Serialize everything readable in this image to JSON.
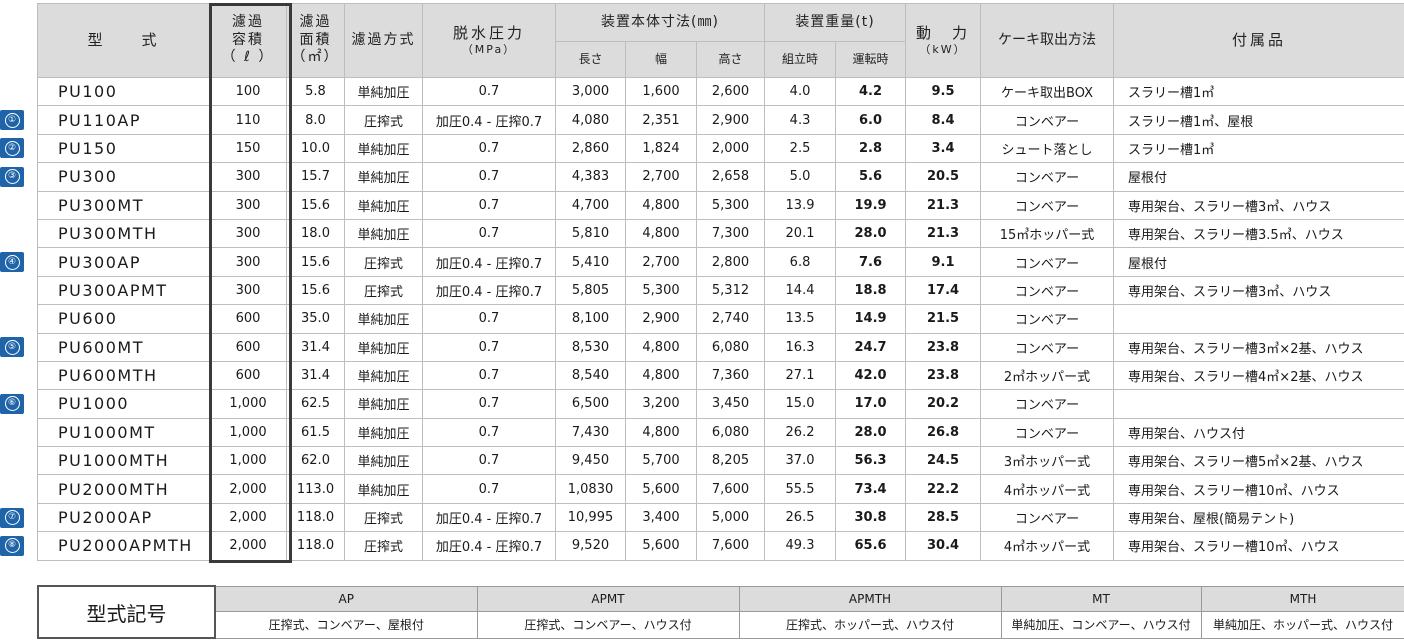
{
  "headers": {
    "model": "型　　式",
    "capacity": "濾過\n容積\n（ ℓ ）",
    "area": "濾過\n面積\n（㎡）",
    "method": "濾過方式",
    "pressure": "脱水圧力",
    "pressure_unit": "（MPa）",
    "dimensions": "装置本体寸法(㎜)",
    "length": "長さ",
    "width": "幅",
    "height": "高さ",
    "weight": "装置重量(t)",
    "weight_assembly": "組立時",
    "weight_operation": "運転時",
    "power": "動　力",
    "power_unit": "（kW）",
    "cake": "ケーキ取出方法",
    "accessories": "付属品"
  },
  "rows": [
    {
      "badge": "",
      "model": "PU100",
      "capacity": "100",
      "area": "5.8",
      "method": "単純加圧",
      "pressure": "0.7",
      "length": "3,000",
      "width": "1,600",
      "height": "2,600",
      "w_asm": "4.0",
      "w_op": "4.2",
      "power": "9.5",
      "cake": "ケーキ取出BOX",
      "acc": "スラリー槽1㎥"
    },
    {
      "badge": "①",
      "model": "PU110AP",
      "capacity": "110",
      "area": "8.0",
      "method": "圧搾式",
      "pressure": "加圧0.4 - 圧搾0.7",
      "length": "4,080",
      "width": "2,351",
      "height": "2,900",
      "w_asm": "4.3",
      "w_op": "6.0",
      "power": "8.4",
      "cake": "コンベアー",
      "acc": "スラリー槽1㎥、屋根"
    },
    {
      "badge": "②",
      "model": "PU150",
      "capacity": "150",
      "area": "10.0",
      "method": "単純加圧",
      "pressure": "0.7",
      "length": "2,860",
      "width": "1,824",
      "height": "2,000",
      "w_asm": "2.5",
      "w_op": "2.8",
      "power": "3.4",
      "cake": "シュート落とし",
      "acc": "スラリー槽1㎥"
    },
    {
      "badge": "③",
      "model": "PU300",
      "capacity": "300",
      "area": "15.7",
      "method": "単純加圧",
      "pressure": "0.7",
      "length": "4,383",
      "width": "2,700",
      "height": "2,658",
      "w_asm": "5.0",
      "w_op": "5.6",
      "power": "20.5",
      "cake": "コンベアー",
      "acc": "屋根付"
    },
    {
      "badge": "",
      "model": "PU300MT",
      "capacity": "300",
      "area": "15.6",
      "method": "単純加圧",
      "pressure": "0.7",
      "length": "4,700",
      "width": "4,800",
      "height": "5,300",
      "w_asm": "13.9",
      "w_op": "19.9",
      "power": "21.3",
      "cake": "コンベアー",
      "acc": "専用架台、スラリー槽3㎥、ハウス"
    },
    {
      "badge": "",
      "model": "PU300MTH",
      "capacity": "300",
      "area": "18.0",
      "method": "単純加圧",
      "pressure": "0.7",
      "length": "5,810",
      "width": "4,800",
      "height": "7,300",
      "w_asm": "20.1",
      "w_op": "28.0",
      "power": "21.3",
      "cake": "15㎥ホッパー式",
      "acc": "専用架台、スラリー槽3.5㎥、ハウス"
    },
    {
      "badge": "④",
      "model": "PU300AP",
      "capacity": "300",
      "area": "15.6",
      "method": "圧搾式",
      "pressure": "加圧0.4 - 圧搾0.7",
      "length": "5,410",
      "width": "2,700",
      "height": "2,800",
      "w_asm": "6.8",
      "w_op": "7.6",
      "power": "9.1",
      "cake": "コンベアー",
      "acc": "屋根付"
    },
    {
      "badge": "",
      "model": "PU300APMT",
      "capacity": "300",
      "area": "15.6",
      "method": "圧搾式",
      "pressure": "加圧0.4 - 圧搾0.7",
      "length": "5,805",
      "width": "5,300",
      "height": "5,312",
      "w_asm": "14.4",
      "w_op": "18.8",
      "power": "17.4",
      "cake": "コンベアー",
      "acc": "専用架台、スラリー槽3㎥、ハウス"
    },
    {
      "badge": "",
      "model": "PU600",
      "capacity": "600",
      "area": "35.0",
      "method": "単純加圧",
      "pressure": "0.7",
      "length": "8,100",
      "width": "2,900",
      "height": "2,740",
      "w_asm": "13.5",
      "w_op": "14.9",
      "power": "21.5",
      "cake": "コンベアー",
      "acc": ""
    },
    {
      "badge": "⑤",
      "model": "PU600MT",
      "capacity": "600",
      "area": "31.4",
      "method": "単純加圧",
      "pressure": "0.7",
      "length": "8,530",
      "width": "4,800",
      "height": "6,080",
      "w_asm": "16.3",
      "w_op": "24.7",
      "power": "23.8",
      "cake": "コンベアー",
      "acc": "専用架台、スラリー槽3㎥×2基、ハウス"
    },
    {
      "badge": "",
      "model": "PU600MTH",
      "capacity": "600",
      "area": "31.4",
      "method": "単純加圧",
      "pressure": "0.7",
      "length": "8,540",
      "width": "4,800",
      "height": "7,360",
      "w_asm": "27.1",
      "w_op": "42.0",
      "power": "23.8",
      "cake": "2㎥ホッパー式",
      "acc": "専用架台、スラリー槽4㎥×2基、ハウス"
    },
    {
      "badge": "⑥",
      "model": "PU1000",
      "capacity": "1,000",
      "area": "62.5",
      "method": "単純加圧",
      "pressure": "0.7",
      "length": "6,500",
      "width": "3,200",
      "height": "3,450",
      "w_asm": "15.0",
      "w_op": "17.0",
      "power": "20.2",
      "cake": "コンベアー",
      "acc": ""
    },
    {
      "badge": "",
      "model": "PU1000MT",
      "capacity": "1,000",
      "area": "61.5",
      "method": "単純加圧",
      "pressure": "0.7",
      "length": "7,430",
      "width": "4,800",
      "height": "6,080",
      "w_asm": "26.2",
      "w_op": "28.0",
      "power": "26.8",
      "cake": "コンベアー",
      "acc": "専用架台、ハウス付"
    },
    {
      "badge": "",
      "model": "PU1000MTH",
      "capacity": "1,000",
      "area": "62.0",
      "method": "単純加圧",
      "pressure": "0.7",
      "length": "9,450",
      "width": "5,700",
      "height": "8,205",
      "w_asm": "37.0",
      "w_op": "56.3",
      "power": "24.5",
      "cake": "3㎥ホッパー式",
      "acc": "専用架台、スラリー槽5㎥×2基、ハウス"
    },
    {
      "badge": "",
      "model": "PU2000MTH",
      "capacity": "2,000",
      "area": "113.0",
      "method": "単純加圧",
      "pressure": "0.7",
      "length": "1,0830",
      "width": "5,600",
      "height": "7,600",
      "w_asm": "55.5",
      "w_op": "73.4",
      "power": "22.2",
      "cake": "4㎥ホッパー式",
      "acc": "専用架台、スラリー槽10㎥、ハウス"
    },
    {
      "badge": "⑦",
      "model": "PU2000AP",
      "capacity": "2,000",
      "area": "118.0",
      "method": "圧搾式",
      "pressure": "加圧0.4 - 圧搾0.7",
      "length": "10,995",
      "width": "3,400",
      "height": "5,000",
      "w_asm": "26.5",
      "w_op": "30.8",
      "power": "28.5",
      "cake": "コンベアー",
      "acc": "専用架台、屋根(簡易テント)"
    },
    {
      "badge": "⑧",
      "model": "PU2000APMTH",
      "capacity": "2,000",
      "area": "118.0",
      "method": "圧搾式",
      "pressure": "加圧0.4 - 圧搾0.7",
      "length": "9,520",
      "width": "5,600",
      "height": "7,600",
      "w_asm": "49.3",
      "w_op": "65.6",
      "power": "30.4",
      "cake": "4㎥ホッパー式",
      "acc": "専用架台、スラリー槽10㎥、ハウス"
    }
  ],
  "legend": {
    "title": "型式記号",
    "items": [
      {
        "code": "AP",
        "desc": "圧搾式、コンベアー、屋根付"
      },
      {
        "code": "APMT",
        "desc": "圧搾式、コンベアー、ハウス付"
      },
      {
        "code": "APMTH",
        "desc": "圧搾式、ホッパー式、ハウス付"
      },
      {
        "code": "MT",
        "desc": "単純加圧、コンベアー、ハウス付"
      },
      {
        "code": "MTH",
        "desc": "単純加圧、ホッパー式、ハウス付"
      }
    ]
  },
  "colors": {
    "badge": "#1f63a8",
    "header_bg": "#dcdcdc",
    "grid": "#bdbdbd",
    "highlight_frame": "#3a3a3a"
  }
}
